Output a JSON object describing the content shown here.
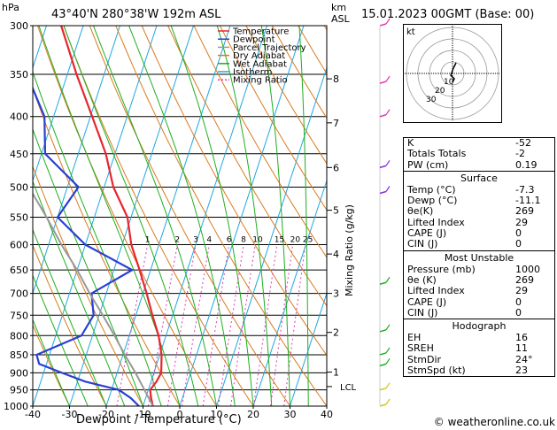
{
  "header": {
    "location": "43°40'N  280°38'W  192m  ASL",
    "hpa_unit": "hPa",
    "km_unit": "km",
    "asl_unit": "ASL",
    "datetime": "15.01.2023  00GMT  (Base: 00)"
  },
  "legend": [
    {
      "label": "Temperature",
      "color": "#e8262e"
    },
    {
      "label": "Dewpoint",
      "color": "#2b3fd4"
    },
    {
      "label": "Parcel Trajectory",
      "color": "#999999"
    },
    {
      "label": "Dry Adiabat",
      "color": "#d97b1f"
    },
    {
      "label": "Wet Adiabat",
      "color": "#1fae1f"
    },
    {
      "label": "Isotherm",
      "color": "#1fa7e0"
    },
    {
      "label": "Mixing Ratio",
      "color": "#e03ab5"
    }
  ],
  "axis": {
    "xlabel": "Dewpoint / Temperature (°C)",
    "ylabel_right": "Mixing Ratio (g/kg)",
    "lcl_label": "LCL"
  },
  "chart_data": {
    "type": "line",
    "skew_t": true,
    "x_ticks": [
      "-40",
      "-30",
      "-20",
      "-10",
      "0",
      "10",
      "20",
      "30",
      "40"
    ],
    "pressure_levels": [
      300,
      350,
      400,
      450,
      500,
      550,
      600,
      650,
      700,
      750,
      800,
      850,
      900,
      950,
      1000
    ],
    "pressure_labels": [
      "300",
      "350",
      "400",
      "450",
      "500",
      "550",
      "600",
      "650",
      "700",
      "750",
      "800",
      "850",
      "900",
      "950",
      "1000"
    ],
    "km_ticks": [
      {
        "label": "8",
        "p": 355
      },
      {
        "label": "7",
        "p": 408
      },
      {
        "label": "6",
        "p": 470
      },
      {
        "label": "5",
        "p": 538
      },
      {
        "label": "4",
        "p": 618
      },
      {
        "label": "3",
        "p": 700
      },
      {
        "label": "2",
        "p": 792
      },
      {
        "label": "1",
        "p": 898
      }
    ],
    "lcl_p": 940,
    "mixing_ratio_labels": [
      "1",
      "2",
      "3",
      "4",
      "6",
      "8",
      "10",
      "15",
      "20",
      "25"
    ],
    "mixing_ratio_values": [
      1,
      2,
      3,
      4,
      6,
      8,
      10,
      15,
      20,
      25
    ],
    "series": [
      {
        "name": "Temperature",
        "color": "#e8262e",
        "points": [
          [
            1000,
            -7.3
          ],
          [
            975,
            -8.5
          ],
          [
            950,
            -9.5
          ],
          [
            925,
            -8.5
          ],
          [
            900,
            -8.0
          ],
          [
            850,
            -9.5
          ],
          [
            800,
            -12.0
          ],
          [
            750,
            -15.5
          ],
          [
            700,
            -19.0
          ],
          [
            650,
            -23.0
          ],
          [
            600,
            -27.5
          ],
          [
            550,
            -31.0
          ],
          [
            500,
            -37.5
          ],
          [
            450,
            -42.5
          ],
          [
            400,
            -49.5
          ],
          [
            350,
            -57.5
          ],
          [
            300,
            -66.0
          ]
        ]
      },
      {
        "name": "Dewpoint",
        "color": "#2b3fd4",
        "points": [
          [
            1000,
            -11.1
          ],
          [
            975,
            -14.0
          ],
          [
            950,
            -18.0
          ],
          [
            925,
            -28.0
          ],
          [
            900,
            -35.0
          ],
          [
            875,
            -42.0
          ],
          [
            850,
            -43.5
          ],
          [
            800,
            -33.0
          ],
          [
            750,
            -31.5
          ],
          [
            700,
            -34.0
          ],
          [
            650,
            -25.0
          ],
          [
            600,
            -40.0
          ],
          [
            550,
            -50.0
          ],
          [
            500,
            -47.0
          ],
          [
            450,
            -59.0
          ],
          [
            400,
            -62.5
          ],
          [
            350,
            -71.0
          ],
          [
            300,
            -80.0
          ]
        ]
      },
      {
        "name": "Parcel Trajectory",
        "color": "#999999",
        "points": [
          [
            1000,
            -7.3
          ],
          [
            940,
            -11.8
          ],
          [
            900,
            -15.0
          ],
          [
            850,
            -19.5
          ],
          [
            800,
            -24.0
          ],
          [
            750,
            -29.0
          ],
          [
            700,
            -34.5
          ],
          [
            650,
            -40.0
          ],
          [
            600,
            -46.5
          ],
          [
            550,
            -53.0
          ],
          [
            500,
            -60.5
          ],
          [
            450,
            -68.0
          ],
          [
            400,
            -76.5
          ]
        ]
      }
    ]
  },
  "indices": {
    "rows": [
      {
        "label": "K",
        "value": "-52"
      },
      {
        "label": "Totals Totals",
        "value": "-2"
      },
      {
        "label": "PW (cm)",
        "value": "0.19"
      }
    ]
  },
  "surface": {
    "title": "Surface",
    "rows": [
      {
        "label": "Temp (°C)",
        "value": "-7.3"
      },
      {
        "label": "Dewp (°C)",
        "value": "-11.1"
      },
      {
        "label": "θe(K)",
        "value": "269"
      },
      {
        "label": "Lifted Index",
        "value": "29"
      },
      {
        "label": "CAPE (J)",
        "value": "0"
      },
      {
        "label": "CIN (J)",
        "value": "0"
      }
    ]
  },
  "unstable": {
    "title": "Most Unstable",
    "rows": [
      {
        "label": "Pressure (mb)",
        "value": "1000"
      },
      {
        "label": "θe (K)",
        "value": "269"
      },
      {
        "label": "Lifted Index",
        "value": "29"
      },
      {
        "label": "CAPE (J)",
        "value": "0"
      },
      {
        "label": "CIN (J)",
        "value": "0"
      }
    ]
  },
  "hodograph": {
    "title": "Hodograph",
    "rows": [
      {
        "label": "EH",
        "value": "16"
      },
      {
        "label": "SREH",
        "value": "11"
      },
      {
        "label": "StmDir",
        "value": "24°"
      },
      {
        "label": "StmSpd (kt)",
        "value": "23"
      }
    ]
  },
  "hodo_plot": {
    "unit_label": "kt",
    "ring_labels": [
      "10",
      "20",
      "30"
    ]
  },
  "footer": {
    "copyright": "© weatheronline.co.uk"
  }
}
